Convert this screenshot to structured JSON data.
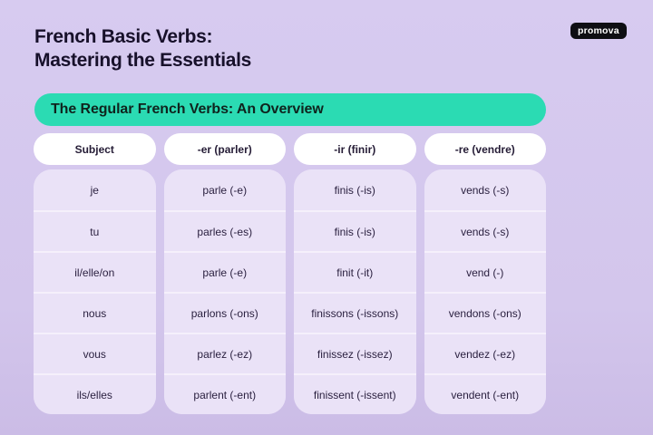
{
  "page": {
    "title_line1": "French Basic Verbs:",
    "title_line2": "Mastering the Essentials",
    "logo_label": "promova",
    "banner_title": "The Regular French Verbs: An Overview"
  },
  "table": {
    "headers": [
      "Subject",
      "-er (parler)",
      "-ir (finir)",
      "-re (vendre)"
    ],
    "rows": [
      [
        "je",
        "parle (-e)",
        "finis (-is)",
        "vends (-s)"
      ],
      [
        "tu",
        "parles (-es)",
        "finis (-is)",
        "vends (-s)"
      ],
      [
        "il/elle/on",
        "parle (-e)",
        "finit (-it)",
        "vend (-)"
      ],
      [
        "nous",
        "parlons (-ons)",
        "finissons (-issons)",
        "vendons (-ons)"
      ],
      [
        "vous",
        "parlez (-ez)",
        "finissez (-issez)",
        "vendez (-ez)"
      ],
      [
        "ils/elles",
        "parlent (-ent)",
        "finissent (-issent)",
        "vendent (-ent)"
      ]
    ]
  },
  "colors": {
    "background_top": "#d7cbf0",
    "background_bottom": "#cbbce6",
    "banner": "#2bdbb3",
    "header_pill": "#ffffff",
    "cell": "#eae2f7",
    "separator": "#f5f0fb",
    "title_text": "#17102a",
    "cell_text": "#2b2140",
    "logo_bg": "#0e0e13",
    "logo_text": "#ffffff"
  }
}
